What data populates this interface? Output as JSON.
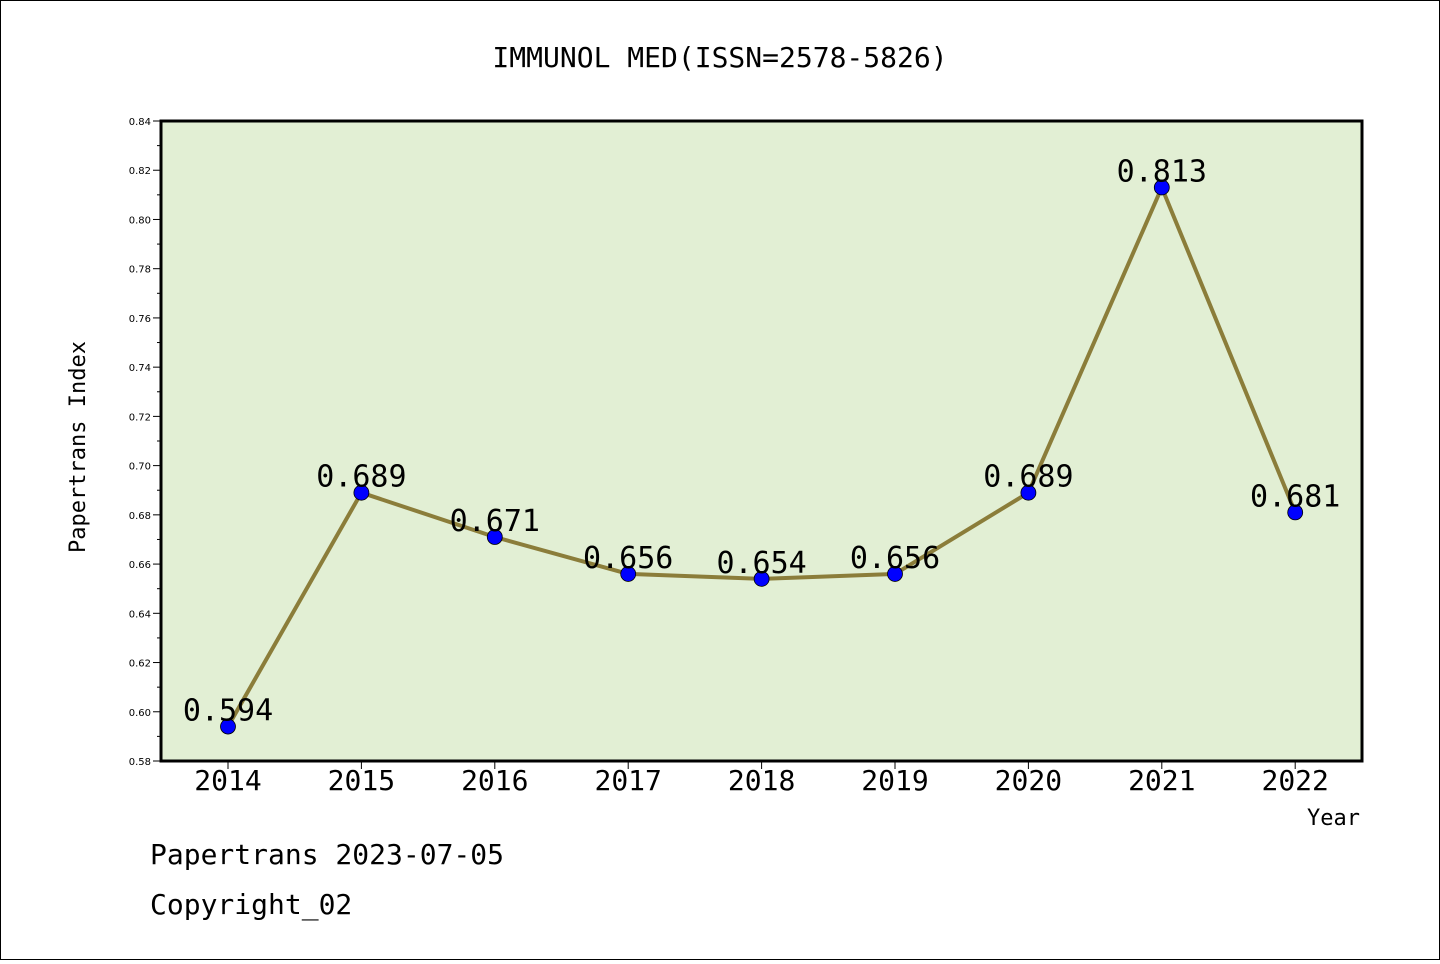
{
  "chart_data": {
    "type": "line",
    "title": "IMMUNOL MED(ISSN=2578-5826)",
    "xlabel": "Year",
    "ylabel": "Papertrans Index",
    "categories": [
      "2014",
      "2015",
      "2016",
      "2017",
      "2018",
      "2019",
      "2020",
      "2021",
      "2022"
    ],
    "values": [
      0.594,
      0.689,
      0.671,
      0.656,
      0.654,
      0.656,
      0.689,
      0.813,
      0.681
    ],
    "data_labels": [
      "0.594",
      "0.689",
      "0.671",
      "0.656",
      "0.654",
      "0.656",
      "0.689",
      "0.813",
      "0.681"
    ],
    "ylim": [
      0.58,
      0.84
    ],
    "yticks": [
      "0.58",
      "0.60",
      "0.62",
      "0.64",
      "0.66",
      "0.68",
      "0.70",
      "0.72",
      "0.74",
      "0.76",
      "0.78",
      "0.80",
      "0.82",
      "0.84"
    ],
    "grid": false,
    "colors": {
      "plot_background": "#e2efd4",
      "line": "#8b7d3a",
      "marker": "#0000ff"
    }
  },
  "footer": {
    "source": "Papertrans 2023-07-05",
    "copyright": "Copyright_02"
  }
}
